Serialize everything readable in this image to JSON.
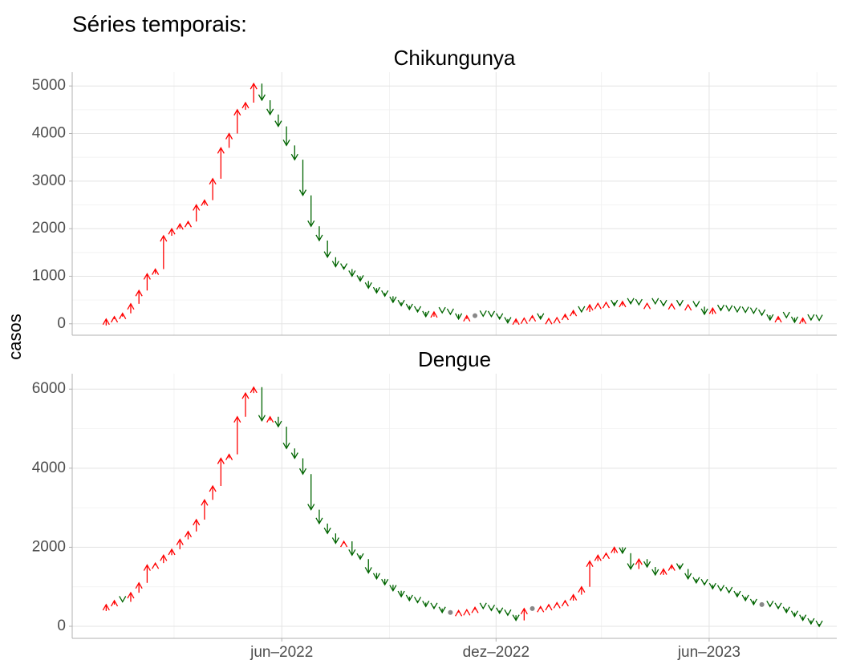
{
  "chart_data": [
    {
      "type": "arrow",
      "heading": "Séries temporais:",
      "ylabel": "casos",
      "title": "Chikungunya",
      "up_color": "#ff0000",
      "down_color": "#006400",
      "same_color": "#888888",
      "grid": true,
      "x": [
        "2022-01-02",
        "2022-01-09",
        "2022-01-16",
        "2022-01-23",
        "2022-01-30",
        "2022-02-06",
        "2022-02-13",
        "2022-02-20",
        "2022-02-27",
        "2022-03-06",
        "2022-03-13",
        "2022-03-20",
        "2022-03-27",
        "2022-04-03",
        "2022-04-10",
        "2022-04-17",
        "2022-04-24",
        "2022-05-01",
        "2022-05-08",
        "2022-05-15",
        "2022-05-22",
        "2022-05-29",
        "2022-06-05",
        "2022-06-12",
        "2022-06-19",
        "2022-06-26",
        "2022-07-03",
        "2022-07-10",
        "2022-07-17",
        "2022-07-24",
        "2022-07-31",
        "2022-08-07",
        "2022-08-14",
        "2022-08-21",
        "2022-08-28",
        "2022-09-04",
        "2022-09-11",
        "2022-09-18",
        "2022-09-25",
        "2022-10-02",
        "2022-10-09",
        "2022-10-16",
        "2022-10-23",
        "2022-10-30",
        "2022-11-06",
        "2022-11-13",
        "2022-11-20",
        "2022-11-27",
        "2022-12-04",
        "2022-12-11",
        "2022-12-18",
        "2022-12-25",
        "2023-01-01",
        "2023-01-08",
        "2023-01-15",
        "2023-01-22",
        "2023-01-29",
        "2023-02-05",
        "2023-02-12",
        "2023-02-19",
        "2023-02-26",
        "2023-03-05",
        "2023-03-12",
        "2023-03-19",
        "2023-03-26",
        "2023-04-02",
        "2023-04-09",
        "2023-04-16",
        "2023-04-23",
        "2023-04-30",
        "2023-05-07",
        "2023-05-14",
        "2023-05-21",
        "2023-05-28",
        "2023-06-04",
        "2023-06-11",
        "2023-06-18",
        "2023-06-25",
        "2023-07-02",
        "2023-07-09",
        "2023-07-16",
        "2023-07-23",
        "2023-07-30",
        "2023-08-06",
        "2023-08-13",
        "2023-08-20",
        "2023-08-27",
        "2023-09-03"
      ],
      "values": [
        100,
        150,
        220,
        420,
        700,
        1050,
        1150,
        1850,
        2000,
        2100,
        2150,
        2500,
        2600,
        3050,
        3700,
        4000,
        4500,
        4650,
        5050,
        4700,
        4400,
        4150,
        3750,
        3450,
        2700,
        2050,
        1750,
        1400,
        1200,
        1150,
        1000,
        900,
        750,
        650,
        580,
        450,
        380,
        300,
        250,
        150,
        250,
        230,
        200,
        100,
        170,
        170,
        160,
        150,
        100,
        20,
        100,
        120,
        170,
        100,
        110,
        130,
        200,
        280,
        250,
        400,
        430,
        450,
        380,
        470,
        420,
        400,
        430,
        420,
        380,
        420,
        380,
        400,
        360,
        200,
        330,
        280,
        270,
        250,
        240,
        220,
        180,
        80,
        150,
        130,
        30,
        120,
        80,
        70
      ],
      "xlim": [
        "2021-12-04",
        "2023-09-18"
      ],
      "xticks": [
        {
          "value": "2022-06-01",
          "label": "jun–2022"
        },
        {
          "value": "2022-12-01",
          "label": "dez–2022"
        },
        {
          "value": "2023-06-01",
          "label": "jun–2023"
        }
      ],
      "xminor": [
        "2022-03-01",
        "2022-09-01",
        "2023-03-01",
        "2023-09-01"
      ],
      "ylim": [
        -240,
        5290
      ],
      "yticks": [
        0,
        1000,
        2000,
        3000,
        4000,
        5000
      ],
      "yminor": [
        500,
        1500,
        2500,
        3500,
        4500
      ]
    },
    {
      "type": "arrow",
      "title": "Dengue",
      "up_color": "#ff0000",
      "down_color": "#006400",
      "same_color": "#888888",
      "grid": true,
      "x": [
        "2022-01-02",
        "2022-01-09",
        "2022-01-16",
        "2022-01-23",
        "2022-01-30",
        "2022-02-06",
        "2022-02-13",
        "2022-02-20",
        "2022-02-27",
        "2022-03-06",
        "2022-03-13",
        "2022-03-20",
        "2022-03-27",
        "2022-04-03",
        "2022-04-10",
        "2022-04-17",
        "2022-04-24",
        "2022-05-01",
        "2022-05-08",
        "2022-05-15",
        "2022-05-22",
        "2022-05-29",
        "2022-06-05",
        "2022-06-12",
        "2022-06-19",
        "2022-06-26",
        "2022-07-03",
        "2022-07-10",
        "2022-07-17",
        "2022-07-24",
        "2022-07-31",
        "2022-08-07",
        "2022-08-14",
        "2022-08-21",
        "2022-08-28",
        "2022-09-04",
        "2022-09-11",
        "2022-09-18",
        "2022-09-25",
        "2022-10-02",
        "2022-10-09",
        "2022-10-16",
        "2022-10-23",
        "2022-10-30",
        "2022-11-06",
        "2022-11-13",
        "2022-11-20",
        "2022-11-27",
        "2022-12-04",
        "2022-12-11",
        "2022-12-18",
        "2022-12-25",
        "2023-01-01",
        "2023-01-08",
        "2023-01-15",
        "2023-01-22",
        "2023-01-29",
        "2023-02-05",
        "2023-02-12",
        "2023-02-19",
        "2023-02-26",
        "2023-03-05",
        "2023-03-12",
        "2023-03-19",
        "2023-03-26",
        "2023-04-02",
        "2023-04-09",
        "2023-04-16",
        "2023-04-23",
        "2023-04-30",
        "2023-05-07",
        "2023-05-14",
        "2023-05-21",
        "2023-05-28",
        "2023-06-04",
        "2023-06-11",
        "2023-06-18",
        "2023-06-25",
        "2023-07-02",
        "2023-07-09",
        "2023-07-16",
        "2023-07-23",
        "2023-07-30",
        "2023-08-06",
        "2023-08-13",
        "2023-08-20",
        "2023-08-27",
        "2023-09-03"
      ],
      "values": [
        550,
        650,
        620,
        850,
        1100,
        1550,
        1600,
        1800,
        1950,
        2200,
        2400,
        2700,
        3200,
        3550,
        4250,
        4350,
        5300,
        5900,
        6050,
        5200,
        5300,
        5050,
        4500,
        4250,
        3850,
        2950,
        2600,
        2350,
        2100,
        2150,
        1800,
        1700,
        1350,
        1200,
        1050,
        900,
        750,
        650,
        600,
        500,
        450,
        350,
        350,
        400,
        420,
        480,
        450,
        400,
        330,
        280,
        150,
        450,
        450,
        500,
        550,
        600,
        650,
        800,
        1000,
        1650,
        1800,
        1850,
        2000,
        1850,
        1450,
        1700,
        1500,
        1300,
        1450,
        1550,
        1450,
        1200,
        1100,
        1050,
        950,
        900,
        850,
        750,
        650,
        550,
        550,
        500,
        450,
        350,
        250,
        150,
        60,
        0
      ],
      "xlim": [
        "2021-12-04",
        "2023-09-18"
      ],
      "xticks": [
        {
          "value": "2022-06-01",
          "label": "jun–2022"
        },
        {
          "value": "2022-12-01",
          "label": "dez–2022"
        },
        {
          "value": "2023-06-01",
          "label": "jun–2023"
        }
      ],
      "xminor": [
        "2022-03-01",
        "2022-09-01",
        "2023-03-01",
        "2023-09-01"
      ],
      "ylim": [
        -304,
        6390
      ],
      "yticks": [
        0,
        2000,
        4000,
        6000
      ],
      "yminor": [
        1000,
        3000,
        5000
      ]
    }
  ]
}
